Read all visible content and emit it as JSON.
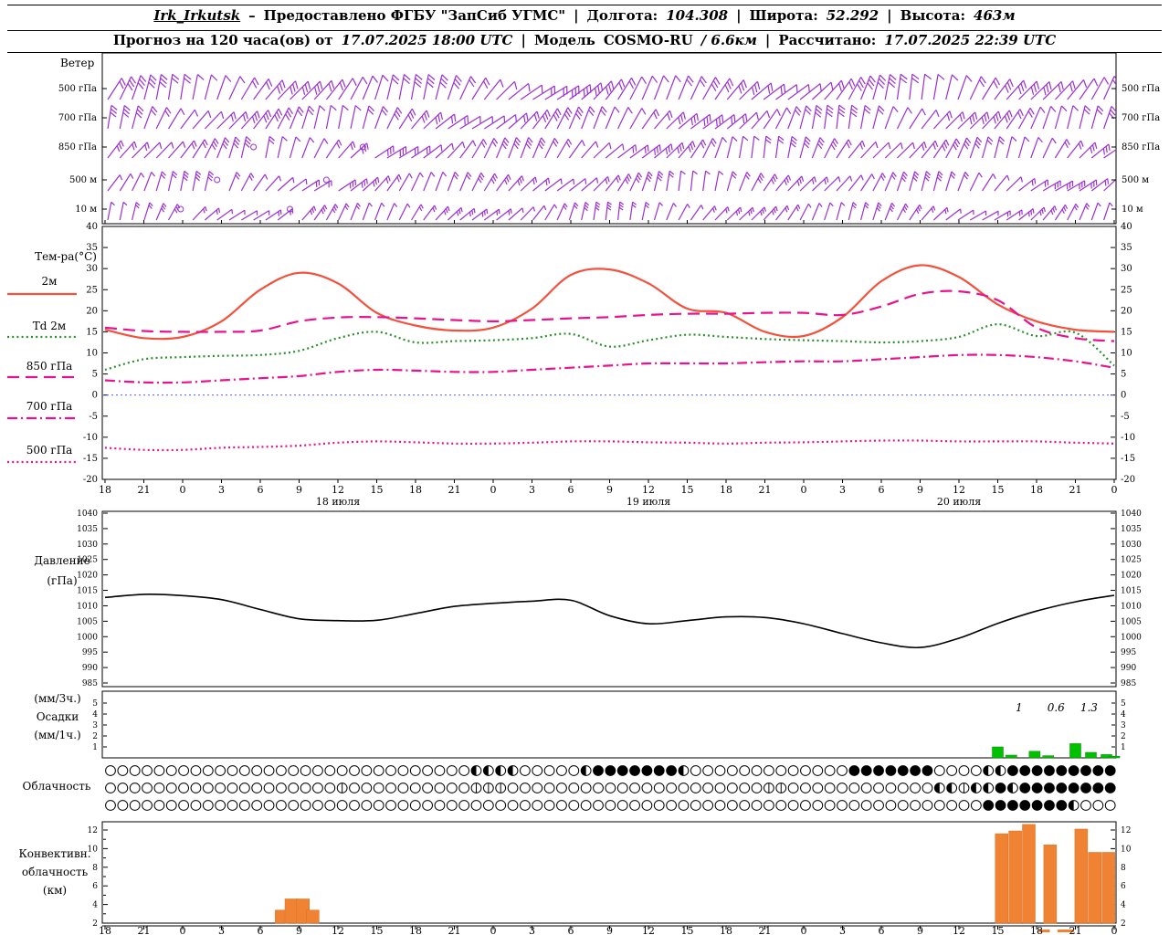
{
  "header": {
    "station": "Irk_Irkutsk",
    "dash": "–",
    "provider": "Предоставлено ФГБУ \"ЗапСиб УГМС\"",
    "sep": "|",
    "lon_label": "Долгота:",
    "lon": "104.308",
    "lat_label": "Широта:",
    "lat": "52.292",
    "alt_label": "Высота:",
    "alt": "463м",
    "forecast_label": "Прогноз на 120 часа(ов) от",
    "forecast_start": "17.07.2025 18:00 UTC",
    "model_label": "Модель",
    "model": "COSMO-RU",
    "model_suffix": "/ 6.6км",
    "calc_label": "Рассчитано:",
    "calc_time": "17.07.2025 22:39 UTC"
  },
  "panels": {
    "wind_title": "Ветер",
    "temp_title": "Тем-ра(°C)",
    "pressure_title1": "Давление",
    "pressure_title2": "(гПа)",
    "precip_title1": "(мм/3ч.)",
    "precip_title2": "Осадки",
    "precip_title3": "(мм/1ч.)",
    "clouds_title": "Облачность",
    "conv_title1": "Конвективн.",
    "conv_title2": "облачность",
    "conv_title3": "(км)"
  },
  "wind": {
    "levels": [
      "500 гПа",
      "700 гПа",
      "850 гПа",
      "500 м",
      "10 м"
    ],
    "color": "#9b2fd6"
  },
  "axis": {
    "hours": [
      "18",
      "21",
      "0",
      "3",
      "6",
      "9",
      "12",
      "15",
      "18",
      "21",
      "0",
      "3",
      "6",
      "9",
      "12",
      "15",
      "18",
      "21",
      "0",
      "3",
      "6",
      "9",
      "12",
      "15",
      "18",
      "21",
      "0"
    ],
    "dates": [
      {
        "label": "18 июля",
        "i": 6
      },
      {
        "label": "19 июля",
        "i": 14
      },
      {
        "label": "20 июля",
        "i": 22
      }
    ]
  },
  "chart_data": [
    {
      "type": "line",
      "title": "Температура (°C)",
      "ylim": [
        -20,
        40
      ],
      "yticks": [
        40,
        35,
        30,
        25,
        20,
        15,
        10,
        5,
        0,
        -5,
        -10,
        -15,
        -20
      ],
      "zero_line": 0,
      "series": [
        {
          "name": "2м",
          "color": "#f4503c",
          "style": "solid",
          "values": [
            15.5,
            13.5,
            13.8,
            17.5,
            25,
            29,
            26.5,
            19.5,
            16.5,
            15.3,
            16,
            20.5,
            28.5,
            29.8,
            26.5,
            20.5,
            19.5,
            15,
            14,
            18.5,
            27,
            30.8,
            28,
            21.5,
            17.5,
            15.5,
            15
          ]
        },
        {
          "name": "Td 2м",
          "color": "#2a8f2a",
          "style": "dotted",
          "values": [
            6,
            8.5,
            9,
            9.3,
            9.5,
            10.5,
            13.5,
            15,
            12.5,
            12.8,
            13,
            13.5,
            14.5,
            11.5,
            13,
            14.3,
            13.8,
            13.3,
            13,
            12.8,
            12.5,
            12.8,
            13.8,
            16.8,
            14,
            14.8,
            7
          ]
        },
        {
          "name": "850 гПа",
          "color": "#e8128e",
          "style": "dashed",
          "values": [
            16,
            15.2,
            15,
            15,
            15.3,
            17.5,
            18.4,
            18.5,
            18.2,
            17.8,
            17.5,
            17.8,
            18.2,
            18.5,
            19,
            19.3,
            19.3,
            19.5,
            19.5,
            19,
            21,
            24,
            24.6,
            22.5,
            16,
            13.5,
            12.8
          ]
        },
        {
          "name": "700 гПа",
          "color": "#e8128e",
          "style": "dashdot",
          "values": [
            3.5,
            3,
            3,
            3.5,
            4,
            4.5,
            5.5,
            6,
            5.8,
            5.5,
            5.5,
            6,
            6.5,
            7,
            7.5,
            7.5,
            7.5,
            7.8,
            8,
            8,
            8.5,
            9,
            9.5,
            9.5,
            9,
            8,
            6.5
          ]
        },
        {
          "name": "500 гПа",
          "color": "#e8128e",
          "style": "dotted",
          "values": [
            -12.5,
            -13,
            -13,
            -12.5,
            -12.3,
            -12,
            -11.3,
            -11,
            -11.2,
            -11.5,
            -11.5,
            -11.3,
            -11,
            -11,
            -11.2,
            -11.3,
            -11.5,
            -11.3,
            -11.2,
            -11,
            -10.8,
            -10.8,
            -11,
            -11,
            -11,
            -11.3,
            -11.5
          ]
        }
      ]
    },
    {
      "type": "line",
      "title": "Давление (гПа)",
      "ylim": [
        985,
        1040
      ],
      "yticks": [
        1040,
        1035,
        1030,
        1025,
        1020,
        1015,
        1010,
        1005,
        1000,
        995,
        990,
        985
      ],
      "color": "#000000",
      "values": [
        1012.7,
        1013.7,
        1013.3,
        1012,
        1008.8,
        1005.8,
        1005.2,
        1005.3,
        1007.5,
        1009.8,
        1010.8,
        1011.5,
        1011.8,
        1006.8,
        1004.2,
        1005.2,
        1006.4,
        1006.2,
        1004.2,
        1001,
        998,
        996.5,
        999.5,
        1004.3,
        1008.3,
        1011.3,
        1013.4
      ]
    },
    {
      "type": "bar",
      "title": "Осадки (мм/3ч., мм/1ч.)",
      "ylim": [
        0,
        6
      ],
      "yticks": [
        5,
        4,
        3,
        2,
        1
      ],
      "color": "#00c000",
      "bars": [
        {
          "i": 23.0,
          "v": 1.0
        },
        {
          "i": 23.35,
          "v": 0.25
        },
        {
          "i": 23.95,
          "v": 0.6
        },
        {
          "i": 24.3,
          "v": 0.2
        },
        {
          "i": 25.0,
          "v": 1.3
        },
        {
          "i": 25.4,
          "v": 0.5
        },
        {
          "i": 25.8,
          "v": 0.3
        },
        {
          "i": 26.0,
          "v": 0.15
        }
      ],
      "labels": [
        {
          "i": 23.55,
          "text": "1"
        },
        {
          "i": 24.5,
          "text": "0.6"
        },
        {
          "i": 25.35,
          "text": "1.3"
        }
      ]
    },
    {
      "type": "symbols",
      "title": "Облачность",
      "rows": [
        "00000000000000000000000000000044440000048888888400000000000008888888000044888888888",
        "00000000000000000001000000000011100000000000000000000011000000000000441448488888888",
        "00000000000000000000000000000000000000000000000000000000000000000000000088888884000"
      ]
    },
    {
      "type": "bar",
      "title": "Конвективная облачность (км)",
      "ylim": [
        2,
        13
      ],
      "yticks": [
        12,
        10,
        8,
        6,
        4,
        2
      ],
      "base": 2,
      "color": "#ef8233",
      "bars": [
        {
          "i": 4.55,
          "top": 3.4
        },
        {
          "i": 4.8,
          "top": 4.6
        },
        {
          "i": 5.1,
          "top": 4.6
        },
        {
          "i": 5.35,
          "top": 3.4
        },
        {
          "i": 23.1,
          "top": 11.6
        },
        {
          "i": 23.45,
          "top": 11.9
        },
        {
          "i": 23.8,
          "top": 12.6
        },
        {
          "i": 24.35,
          "top": 10.4
        },
        {
          "i": 25.15,
          "top": 12.1
        },
        {
          "i": 25.5,
          "top": 9.6
        },
        {
          "i": 25.85,
          "top": 9.6
        }
      ],
      "ground_marks": [
        {
          "i": 24.2,
          "w": 12
        },
        {
          "i": 24.75,
          "w": 18
        }
      ]
    }
  ]
}
